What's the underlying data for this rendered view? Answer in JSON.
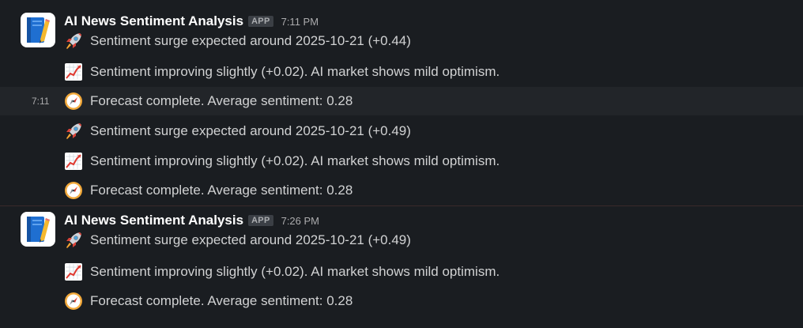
{
  "colors": {
    "background": "#1a1d21",
    "hover_row": "#222529",
    "text": "#d1d2d3",
    "sender": "#ffffff",
    "badge_bg": "#3b3f45"
  },
  "messages": [
    {
      "sender": "AI News Sentiment Analysis",
      "badge": "APP",
      "time": "7:11 PM",
      "avatar_icon": "notebook-pencil-icon",
      "lines": [
        {
          "icon": "rocket-icon",
          "text": "Sentiment surge expected around 2025-10-21 (+0.44)"
        },
        {
          "icon": "chart-increasing-icon",
          "text": "Sentiment improving slightly (+0.02). AI market shows mild optimism."
        },
        {
          "icon": "compass-icon",
          "text": "Forecast complete. Average sentiment: 0.28",
          "hover_time": "7:11"
        },
        {
          "icon": "rocket-icon",
          "text": "Sentiment surge expected around 2025-10-21 (+0.49)"
        },
        {
          "icon": "chart-increasing-icon",
          "text": "Sentiment improving slightly (+0.02). AI market shows mild optimism."
        },
        {
          "icon": "compass-icon",
          "text": "Forecast complete. Average sentiment: 0.28"
        }
      ]
    },
    {
      "sender": "AI News Sentiment Analysis",
      "badge": "APP",
      "time": "7:26 PM",
      "avatar_icon": "notebook-pencil-icon",
      "lines": [
        {
          "icon": "rocket-icon",
          "text": "Sentiment surge expected around 2025-10-21 (+0.49)"
        },
        {
          "icon": "chart-increasing-icon",
          "text": "Sentiment improving slightly (+0.02). AI market shows mild optimism."
        },
        {
          "icon": "compass-icon",
          "text": "Forecast complete. Average sentiment: 0.28"
        }
      ]
    }
  ]
}
